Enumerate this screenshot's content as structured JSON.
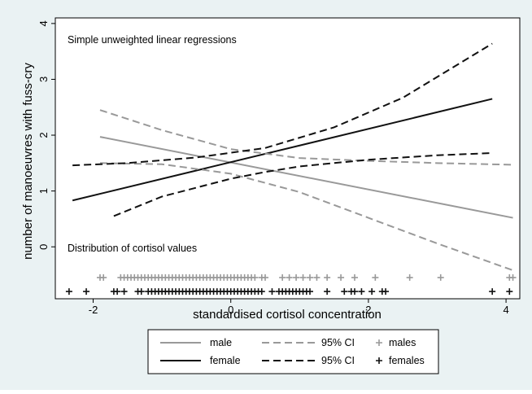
{
  "chart_data": {
    "type": "line",
    "xlabel": "standardised cortisol concentration",
    "ylabel": "number of manoeuvres with fuss-cry",
    "xlim": [
      -2.55,
      4.2
    ],
    "ylim": [
      -0.93,
      4.1
    ],
    "xticks": [
      -2,
      0,
      2,
      4
    ],
    "yticks": [
      0,
      1,
      2,
      3,
      4
    ],
    "grid": false,
    "legend_position": "bottom",
    "annotations": {
      "top": "Simple unweighted linear regressions",
      "bottom": "Distribution of cortisol values"
    },
    "series": [
      {
        "name": "male",
        "style": "solid",
        "color": "#999999",
        "x": [
          -1.9,
          4.1
        ],
        "y": [
          1.97,
          0.52
        ]
      },
      {
        "name": "female",
        "style": "solid",
        "color": "#111111",
        "x": [
          -2.3,
          3.8
        ],
        "y": [
          0.83,
          2.65
        ]
      },
      {
        "name": "95% CI",
        "group": "male",
        "style": "dashed",
        "color": "#999999",
        "x": [
          -1.9,
          -1.0,
          0.0,
          1.0,
          2.0,
          3.0,
          4.1
        ],
        "y": [
          2.45,
          2.09,
          1.75,
          1.59,
          1.54,
          1.5,
          1.47
        ]
      },
      {
        "name": "95% CI",
        "group": "male",
        "style": "dashed",
        "color": "#999999",
        "x": [
          -1.9,
          -1.0,
          0.0,
          1.0,
          2.0,
          3.0,
          4.1
        ],
        "y": [
          1.5,
          1.48,
          1.31,
          0.98,
          0.52,
          0.06,
          -0.42
        ]
      },
      {
        "name": "95% CI",
        "group": "female",
        "style": "dashed",
        "color": "#111111",
        "x": [
          -2.3,
          -1.5,
          -0.5,
          0.5,
          1.5,
          2.5,
          3.8
        ],
        "y": [
          1.46,
          1.5,
          1.6,
          1.77,
          2.14,
          2.67,
          3.64
        ]
      },
      {
        "name": "95% CI",
        "group": "female",
        "style": "dashed",
        "color": "#111111",
        "x": [
          -1.7,
          -1.0,
          0.0,
          0.5,
          1.0,
          2.0,
          3.0,
          3.8
        ],
        "y": [
          0.55,
          0.9,
          1.22,
          1.34,
          1.44,
          1.56,
          1.64,
          1.68
        ]
      }
    ],
    "rug": [
      {
        "name": "males",
        "color": "#999999",
        "y": -0.55,
        "x": [
          -1.9,
          -1.85,
          -1.6,
          -1.55,
          -1.5,
          -1.45,
          -1.4,
          -1.35,
          -1.3,
          -1.25,
          -1.2,
          -1.15,
          -1.1,
          -1.05,
          -1.0,
          -0.95,
          -0.9,
          -0.85,
          -0.8,
          -0.75,
          -0.7,
          -0.65,
          -0.6,
          -0.55,
          -0.5,
          -0.45,
          -0.4,
          -0.35,
          -0.3,
          -0.25,
          -0.2,
          -0.15,
          -0.1,
          -0.05,
          0.0,
          0.05,
          0.1,
          0.15,
          0.2,
          0.25,
          0.3,
          0.35,
          0.45,
          0.5,
          0.75,
          0.85,
          0.95,
          1.05,
          1.15,
          1.25,
          1.4,
          1.6,
          1.8,
          2.1,
          2.6,
          3.05,
          4.05,
          4.1
        ]
      },
      {
        "name": "females",
        "color": "#111111",
        "y": -0.8,
        "x": [
          -2.35,
          -2.1,
          -1.7,
          -1.65,
          -1.55,
          -1.35,
          -1.3,
          -1.2,
          -1.15,
          -1.1,
          -1.05,
          -1.0,
          -0.95,
          -0.9,
          -0.85,
          -0.8,
          -0.75,
          -0.7,
          -0.65,
          -0.6,
          -0.55,
          -0.5,
          -0.45,
          -0.4,
          -0.35,
          -0.3,
          -0.25,
          -0.2,
          -0.15,
          -0.1,
          -0.05,
          0.0,
          0.05,
          0.1,
          0.15,
          0.2,
          0.25,
          0.3,
          0.35,
          0.4,
          0.45,
          0.6,
          0.7,
          0.75,
          0.8,
          0.85,
          0.9,
          0.95,
          1.0,
          1.05,
          1.1,
          1.15,
          1.4,
          1.65,
          1.75,
          1.8,
          1.9,
          2.05,
          2.2,
          2.25,
          3.8,
          4.05
        ]
      }
    ]
  }
}
